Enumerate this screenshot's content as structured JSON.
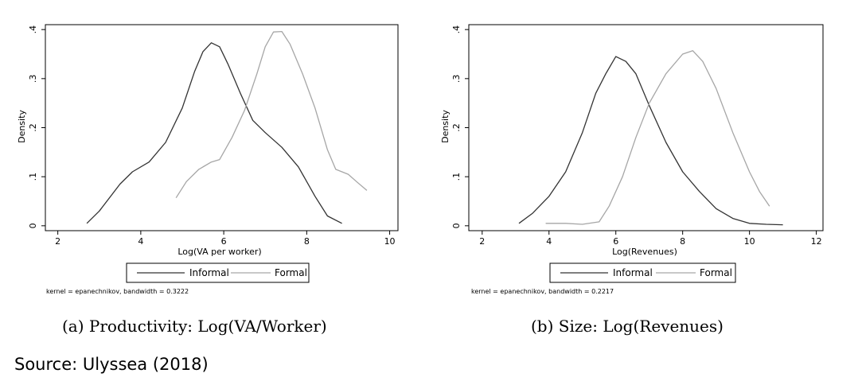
{
  "chart_data": [
    {
      "type": "line",
      "caption": "(a) Productivity: Log(VA/Worker)",
      "xlabel": "Log(VA per worker)",
      "ylabel": "Density",
      "xlim": [
        1.7,
        10.2
      ],
      "ylim": [
        -0.01,
        0.41
      ],
      "xticks": [
        "2",
        "4",
        "6",
        "8",
        "10"
      ],
      "yticks": [
        "0",
        ".1",
        ".2",
        ".3",
        ".4"
      ],
      "note": "kernel = epanechnikov, bandwidth = 0.3222",
      "grid": false,
      "legend": "bottom-center",
      "series": [
        {
          "name": "Informal",
          "color": "#333333",
          "x": [
            2.7,
            3.0,
            3.5,
            3.8,
            4.2,
            4.6,
            5.0,
            5.3,
            5.5,
            5.7,
            5.9,
            6.1,
            6.4,
            6.7,
            7.0,
            7.4,
            7.8,
            8.2,
            8.5,
            8.85
          ],
          "y": [
            0.005,
            0.03,
            0.085,
            0.11,
            0.13,
            0.17,
            0.24,
            0.315,
            0.355,
            0.373,
            0.365,
            0.33,
            0.27,
            0.215,
            0.19,
            0.16,
            0.12,
            0.06,
            0.02,
            0.005
          ]
        },
        {
          "name": "Formal",
          "color": "#a6a6a6",
          "x": [
            4.85,
            5.1,
            5.4,
            5.7,
            5.9,
            6.2,
            6.5,
            6.8,
            7.0,
            7.2,
            7.4,
            7.6,
            7.9,
            8.2,
            8.5,
            8.7,
            9.0,
            9.2,
            9.45
          ],
          "y": [
            0.057,
            0.09,
            0.115,
            0.13,
            0.135,
            0.18,
            0.235,
            0.31,
            0.365,
            0.395,
            0.396,
            0.37,
            0.31,
            0.24,
            0.155,
            0.115,
            0.105,
            0.09,
            0.072
          ]
        }
      ]
    },
    {
      "type": "line",
      "caption": "(b) Size: Log(Revenues)",
      "xlabel": "Log(Revenues)",
      "ylabel": "Density",
      "xlim": [
        1.6,
        12.2
      ],
      "ylim": [
        -0.01,
        0.41
      ],
      "xticks": [
        "2",
        "4",
        "6",
        "8",
        "10",
        "12"
      ],
      "yticks": [
        "0",
        ".1",
        ".2",
        ".3",
        ".4"
      ],
      "note": "kernel = epanechnikov, bandwidth = 0.2217",
      "grid": false,
      "legend": "bottom-center",
      "series": [
        {
          "name": "Informal",
          "color": "#333333",
          "x": [
            3.1,
            3.5,
            4.0,
            4.5,
            5.0,
            5.4,
            5.7,
            6.0,
            6.3,
            6.6,
            7.0,
            7.5,
            8.0,
            8.5,
            9.0,
            9.5,
            10.0,
            10.5,
            11.0
          ],
          "y": [
            0.005,
            0.025,
            0.06,
            0.11,
            0.19,
            0.27,
            0.31,
            0.345,
            0.335,
            0.31,
            0.245,
            0.17,
            0.11,
            0.07,
            0.035,
            0.015,
            0.005,
            0.003,
            0.002
          ]
        },
        {
          "name": "Formal",
          "color": "#a6a6a6",
          "x": [
            3.9,
            4.5,
            5.0,
            5.5,
            5.8,
            6.2,
            6.6,
            7.0,
            7.5,
            8.0,
            8.3,
            8.6,
            9.0,
            9.5,
            10.0,
            10.3,
            10.6
          ],
          "y": [
            0.005,
            0.005,
            0.003,
            0.008,
            0.04,
            0.1,
            0.18,
            0.25,
            0.31,
            0.35,
            0.357,
            0.335,
            0.28,
            0.19,
            0.11,
            0.07,
            0.04
          ]
        }
      ]
    }
  ],
  "source_text": "Source: Ulyssea (2018)"
}
